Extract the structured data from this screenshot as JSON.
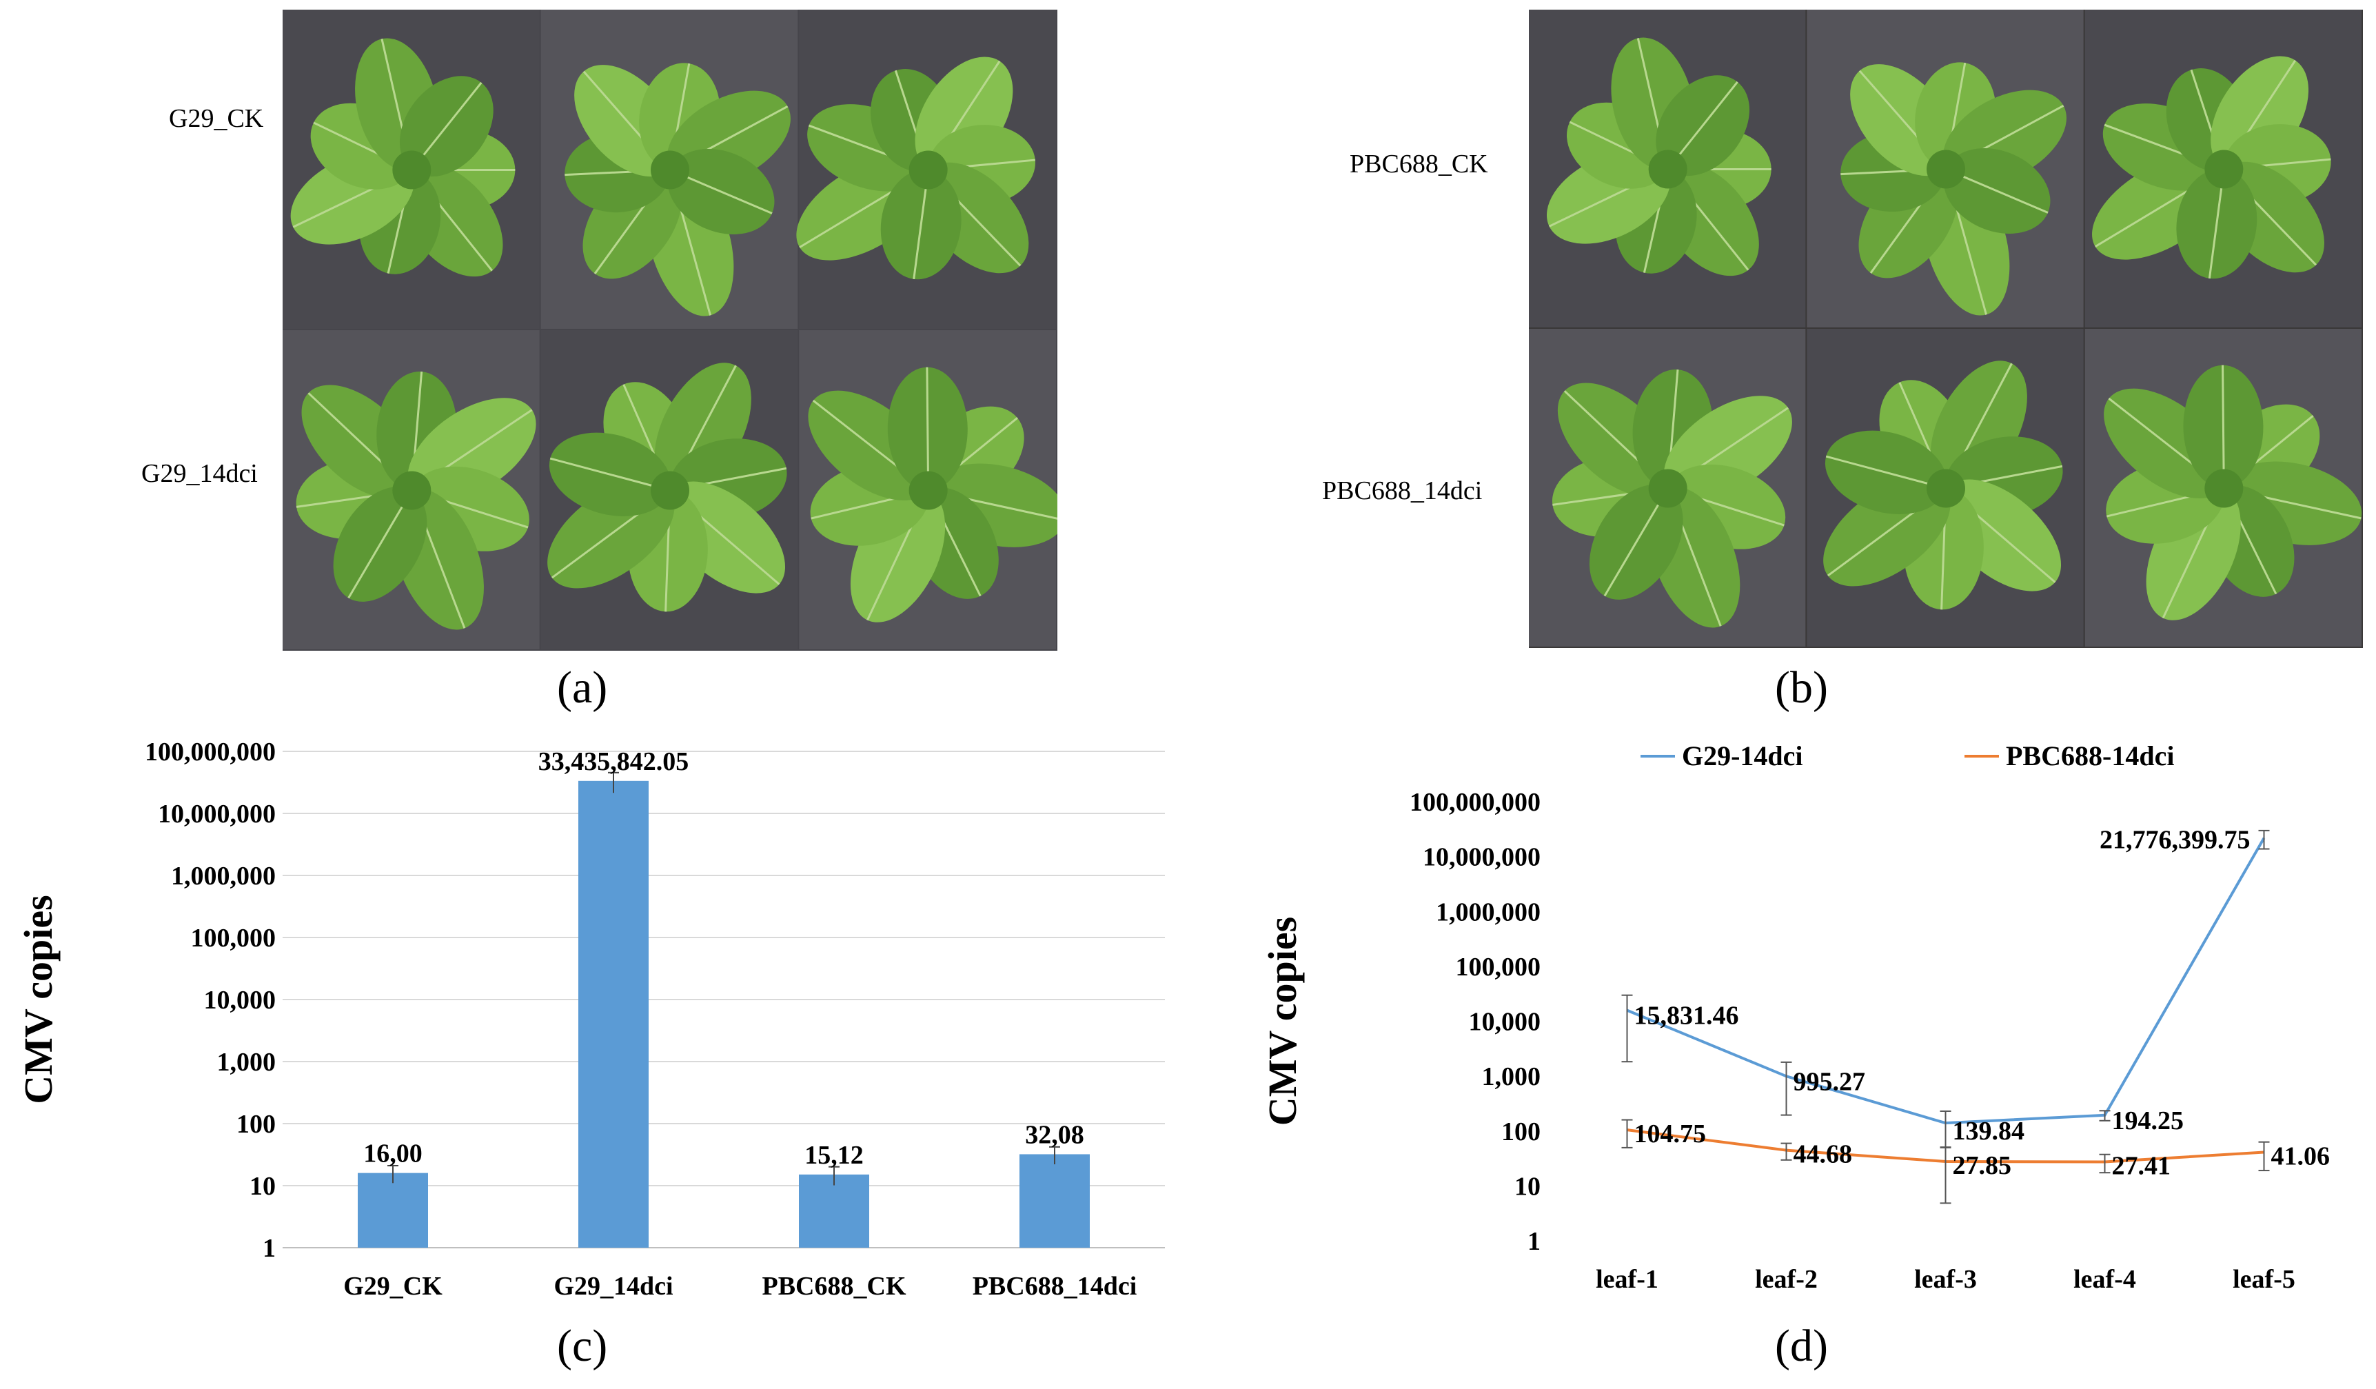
{
  "panels": {
    "a": {
      "letter": "(a)",
      "row_labels": [
        "G29_CK",
        "G29_14dci"
      ]
    },
    "b": {
      "letter": "(b)",
      "row_labels": [
        "PBC688_CK",
        "PBC688_14dci"
      ]
    },
    "c": {
      "letter": "(c)"
    },
    "d": {
      "letter": "(d)"
    }
  },
  "colors": {
    "bar": "#5B9BD5",
    "line_g29": "#5B9BD5",
    "line_pbc": "#ED7D31",
    "photo_bg_a": "#46454b",
    "photo_bg_b": "#3a3838",
    "leaf": "#6aa53b",
    "soil": "#2a221c"
  },
  "chart_data": [
    {
      "type": "bar",
      "ylabel": "CMV copies",
      "yscale": "log",
      "ylim": [
        1,
        100000000
      ],
      "yticks": [
        "1",
        "10",
        "100",
        "1,000",
        "10,000",
        "100,000",
        "1,000,000",
        "10,000,000",
        "100,000,000"
      ],
      "categories": [
        "G29_CK",
        "G29_14dci",
        "PBC688_CK",
        "PBC688_14dci"
      ],
      "values": [
        16.0,
        33435842.05,
        15.12,
        32.08
      ],
      "data_labels": [
        "16,00",
        "33,435,842.05",
        "15,12",
        "32,08"
      ],
      "errors": [
        5,
        12000000,
        5,
        10
      ],
      "grid": true
    },
    {
      "type": "line",
      "ylabel": "CMV copies",
      "yscale": "log",
      "ylim": [
        1,
        100000000
      ],
      "yticks": [
        "1",
        "10",
        "100",
        "1,000",
        "10,000",
        "100,000",
        "1,000,000",
        "10,000,000",
        "100,000,000"
      ],
      "categories": [
        "leaf-1",
        "leaf-2",
        "leaf-3",
        "leaf-4",
        "leaf-5"
      ],
      "legend_position": "top",
      "grid": false,
      "series": [
        {
          "name": "G29-14dci",
          "values": [
            15831.46,
            995.27,
            139.84,
            194.25,
            21776399.75
          ],
          "data_labels": [
            "15,831.46",
            "995.27",
            "139.84",
            "194.25",
            "21,776,399.75"
          ],
          "errors": [
            14000,
            800,
            90,
            40,
            8000000
          ]
        },
        {
          "name": "PBC688-14dci",
          "values": [
            104.75,
            44.68,
            27.85,
            27.41,
            41.06
          ],
          "data_labels": [
            "104.75",
            "44.68",
            "27.85",
            "27.41",
            "41.06"
          ],
          "errors": [
            55,
            15,
            23,
            10,
            22
          ]
        }
      ]
    }
  ]
}
